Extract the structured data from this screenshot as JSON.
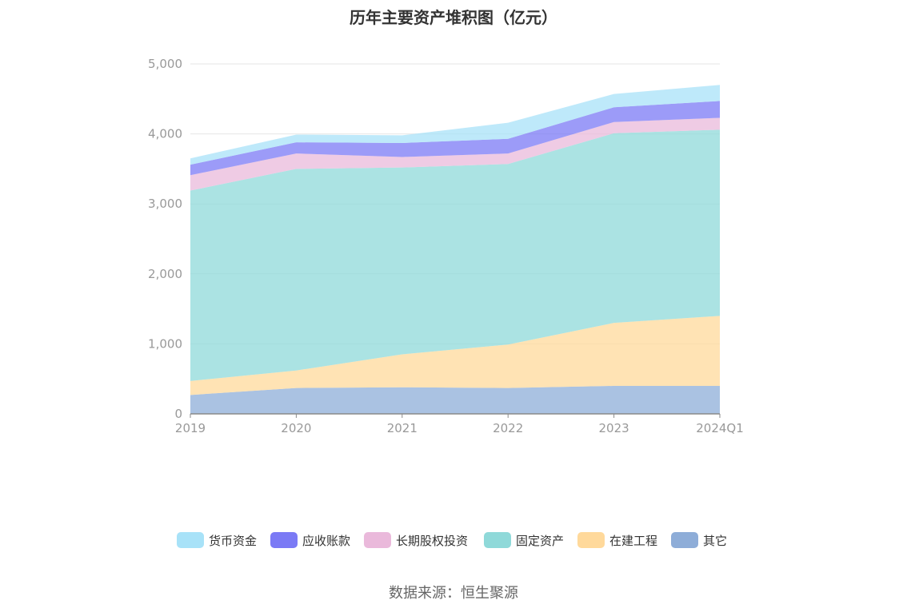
{
  "chart_data": {
    "type": "area",
    "stacked": true,
    "title": "历年主要资产堆积图（亿元）",
    "categories": [
      "2019",
      "2020",
      "2021",
      "2022",
      "2023",
      "2024Q1"
    ],
    "ylim": [
      0,
      5000
    ],
    "yticks": [
      "0",
      "1,000",
      "2,000",
      "3,000",
      "4,000",
      "5,000"
    ],
    "ytick_values": [
      0,
      1000,
      2000,
      3000,
      4000,
      5000
    ],
    "grid": true,
    "legend_position": "bottom",
    "series": [
      {
        "name": "其它",
        "color": "#8eadd8",
        "values": [
          270,
          370,
          380,
          370,
          400,
          400
        ]
      },
      {
        "name": "在建工程",
        "color": "#ffd99b",
        "values": [
          200,
          250,
          470,
          620,
          900,
          1000
        ]
      },
      {
        "name": "固定资产",
        "color": "#8fd9d9",
        "values": [
          2720,
          2880,
          2670,
          2580,
          2710,
          2660
        ]
      },
      {
        "name": "长期股权投资",
        "color": "#eab9db",
        "values": [
          220,
          220,
          150,
          150,
          160,
          170
        ]
      },
      {
        "name": "应收账款",
        "color": "#7b7af5",
        "values": [
          150,
          160,
          200,
          210,
          210,
          240
        ]
      },
      {
        "name": "货币资金",
        "color": "#a8e2f8",
        "values": [
          90,
          110,
          110,
          230,
          190,
          230
        ]
      }
    ],
    "legend_order": [
      "货币资金",
      "应收账款",
      "长期股权投资",
      "固定资产",
      "在建工程",
      "其它"
    ]
  },
  "source": "数据来源：恒生聚源"
}
